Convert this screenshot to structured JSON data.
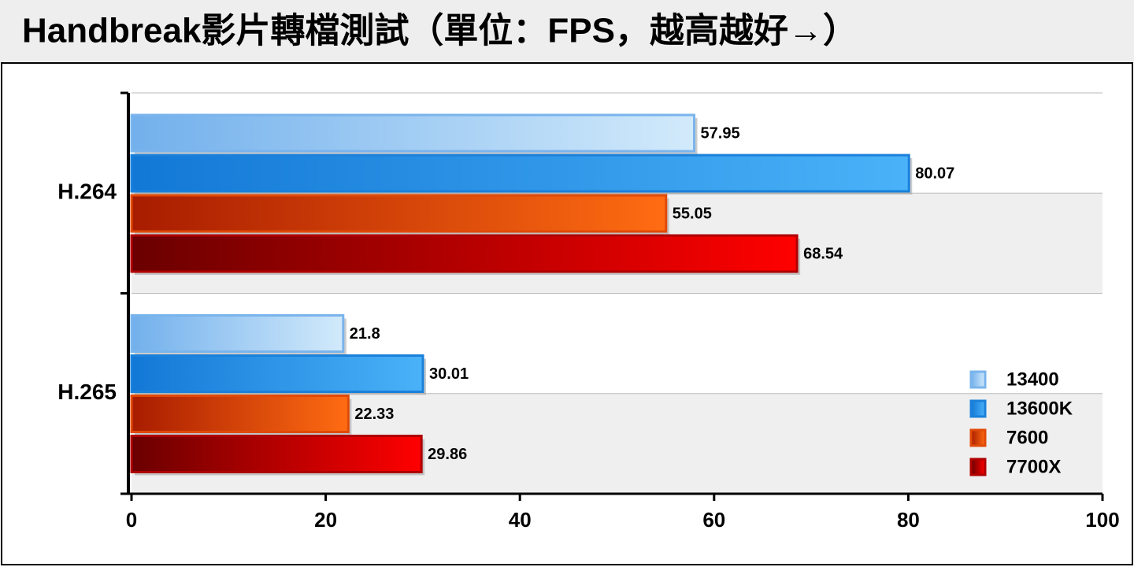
{
  "chart_data": {
    "type": "hbar",
    "title": "Handbreak影片轉檔測試（單位：FPS，越高越好→）",
    "categories": [
      "H.264",
      "H.265"
    ],
    "series": [
      {
        "name": "13400",
        "color": "#7ab4ec",
        "gradient": [
          "#72b0ec",
          "#d2eafb"
        ],
        "values": [
          57.95,
          21.8
        ]
      },
      {
        "name": "13600K",
        "color": "#1a80da",
        "gradient": [
          "#1278d6",
          "#4ab2f8"
        ],
        "values": [
          80.07,
          30.01
        ]
      },
      {
        "name": "7600",
        "color": "#e04a08",
        "gradient": [
          "#a81c00",
          "#ff6c12"
        ],
        "values": [
          55.05,
          22.33
        ]
      },
      {
        "name": "7700X",
        "color": "#b00000",
        "gradient": [
          "#6a0000",
          "#ff0000"
        ],
        "values": [
          68.54,
          29.86
        ]
      }
    ],
    "xlim": [
      0,
      100
    ],
    "xticks": [
      0,
      20,
      40,
      60,
      80,
      100
    ],
    "legend": "lower right"
  }
}
